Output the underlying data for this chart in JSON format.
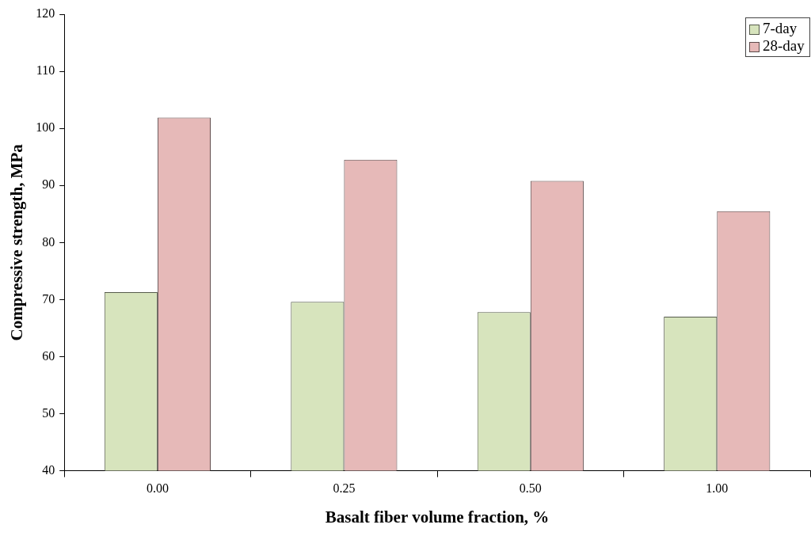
{
  "chart_data": {
    "type": "bar",
    "xlabel": "Basalt fiber volume fraction, %",
    "ylabel": "Compressive strength, MPa",
    "categories": [
      "0.00",
      "0.25",
      "0.50",
      "1.00"
    ],
    "series": [
      {
        "name": "7-day",
        "color": "#d7e4bd",
        "values": [
          71.3,
          69.6,
          67.8,
          67.0
        ]
      },
      {
        "name": "28-day",
        "color": "#e6b9b8",
        "values": [
          101.9,
          94.5,
          90.8,
          85.5
        ]
      }
    ],
    "ylim": [
      40,
      120
    ],
    "yticks": [
      40,
      50,
      60,
      70,
      80,
      90,
      100,
      110,
      120
    ],
    "grid": false,
    "legend": "top right"
  }
}
